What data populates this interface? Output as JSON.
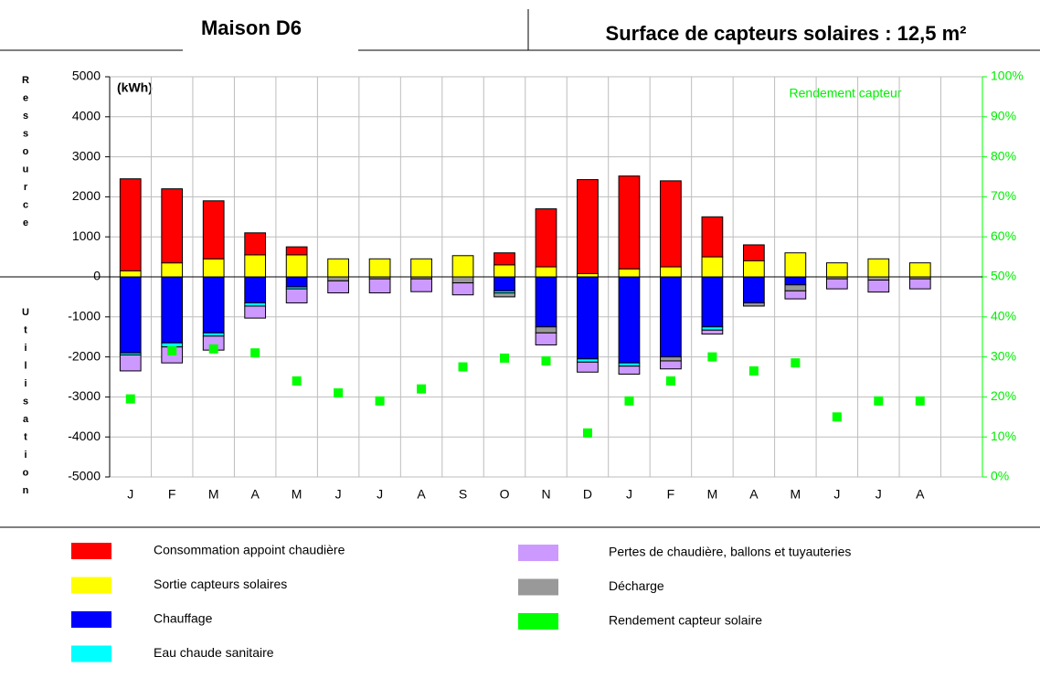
{
  "chart_data": {
    "type": "bar",
    "title": "Maison D6",
    "subtitle": "Surface de capteurs solaires : 12,5 m²",
    "unit_label": "(kWh)",
    "annotation": "Rendement capteur",
    "y_label_top": "Ressource",
    "y_label_bottom": "Utilisation",
    "categories": [
      "J",
      "F",
      "M",
      "A",
      "M",
      "J",
      "J",
      "A",
      "S",
      "O",
      "N",
      "D",
      "J",
      "F",
      "M",
      "A",
      "M",
      "J",
      "J",
      "A"
    ],
    "ylim": [
      -5000,
      5000
    ],
    "yticks": [
      5000,
      4000,
      3000,
      2000,
      1000,
      0,
      -1000,
      -2000,
      -3000,
      -4000,
      -5000
    ],
    "y2lim": [
      0,
      100
    ],
    "y2ticks": [
      {
        "value": 100,
        "label": "100%"
      },
      {
        "value": 90,
        "label": "90%"
      },
      {
        "value": 80,
        "label": "80%"
      },
      {
        "value": 70,
        "label": "70%"
      },
      {
        "value": 60,
        "label": "60%"
      },
      {
        "value": 50,
        "label": "50%"
      },
      {
        "value": 40,
        "label": "40%"
      },
      {
        "value": 30,
        "label": "30%"
      },
      {
        "value": 20,
        "label": "20%"
      },
      {
        "value": 10,
        "label": "10%"
      },
      {
        "value": 0,
        "label": "0%"
      }
    ],
    "grid": true,
    "series": [
      {
        "name": "Consommation appoint chaudière",
        "color": "#ff0000",
        "values": [
          2300,
          1850,
          1450,
          550,
          200,
          0,
          0,
          0,
          0,
          300,
          1450,
          2350,
          2320,
          2150,
          1000,
          400,
          0,
          0,
          0,
          0
        ]
      },
      {
        "name": "Sortie capteurs solaires",
        "color": "#ffff00",
        "values": [
          150,
          350,
          450,
          550,
          550,
          450,
          450,
          450,
          530,
          300,
          250,
          80,
          200,
          250,
          500,
          400,
          600,
          350,
          450,
          350
        ]
      },
      {
        "name": "Chauffage",
        "color": "#0000ff",
        "values": [
          -1900,
          -1650,
          -1400,
          -650,
          -250,
          0,
          0,
          0,
          0,
          -350,
          -1250,
          -2050,
          -2150,
          -2000,
          -1250,
          -650,
          -200,
          0,
          0,
          0
        ]
      },
      {
        "name": "Eau chaude sanitaire",
        "color": "#00ffff",
        "values": [
          -50,
          -100,
          -80,
          -80,
          -50,
          0,
          0,
          0,
          0,
          -50,
          0,
          -80,
          -80,
          0,
          -80,
          0,
          0,
          0,
          0,
          0
        ]
      },
      {
        "name": "Pertes de chaudière, ballons et tuyauteries",
        "color": "#cc99ff",
        "values": [
          -400,
          -400,
          -350,
          -300,
          -350,
          -300,
          -350,
          -320,
          -300,
          0,
          -300,
          -250,
          -200,
          -200,
          -100,
          0,
          -200,
          -250,
          -300,
          -250
        ]
      },
      {
        "name": "Décharge",
        "color": "#999999",
        "values": [
          0,
          0,
          0,
          0,
          0,
          -100,
          -50,
          -50,
          -150,
          -100,
          -150,
          0,
          0,
          -100,
          0,
          -80,
          -150,
          -50,
          -80,
          -50
        ]
      },
      {
        "name": "Rendement capteur solaire",
        "color": "#00ff00",
        "axis": "y2",
        "values": [
          19.5,
          31.5,
          32,
          31,
          24,
          21,
          19,
          22,
          27.5,
          29.7,
          29,
          11,
          19,
          24,
          30,
          26.5,
          28.5,
          15,
          19,
          19
        ]
      }
    ]
  }
}
